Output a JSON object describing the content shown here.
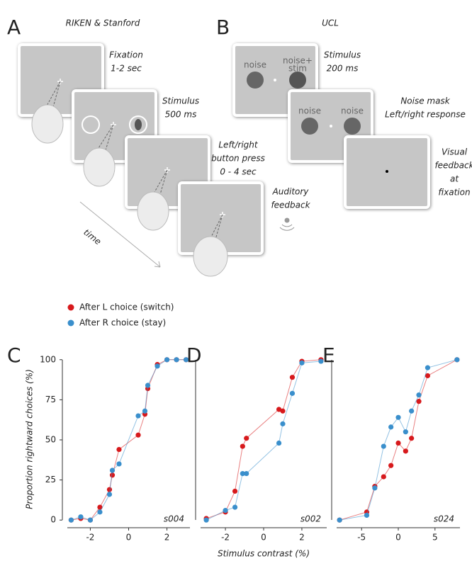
{
  "diagram": {
    "panel_a": {
      "letter": "A",
      "title": "RIKEN & Stanford",
      "labels": [
        [
          "Fixation",
          "1-2 sec"
        ],
        [
          "Stimulus",
          "500 ms"
        ],
        [
          "Left/right",
          "button press",
          "0 - 4 sec"
        ],
        [
          "Auditory",
          "feedback"
        ]
      ],
      "time": "time"
    },
    "panel_b": {
      "letter": "B",
      "title": "UCL",
      "labels": [
        [
          "Stimulus",
          "200 ms"
        ],
        [
          "Noise mask",
          "Left/right response"
        ],
        [
          "Visual",
          "feedback",
          "at",
          "fixation"
        ]
      ],
      "screen_texts": [
        [
          "noise"
        ],
        [
          "noise+",
          "stim"
        ],
        [
          "noise"
        ],
        [
          "noise"
        ]
      ]
    }
  },
  "chart_data": [
    {
      "type": "line",
      "panel": "C",
      "annotation": "s004",
      "y_label": "Proportion rightward choices (%)",
      "x": [
        -3,
        -2.5,
        -2,
        -1.5,
        -1,
        -0.85,
        -0.5,
        0.5,
        0.85,
        1,
        1.5,
        2,
        2.5,
        3
      ],
      "series": [
        {
          "name": "After L choice (switch)",
          "color": "#d7191c",
          "values": [
            0,
            1,
            0,
            8,
            19,
            28,
            44,
            53,
            66,
            82,
            97,
            100,
            100,
            100
          ]
        },
        {
          "name": "After R choice (stay)",
          "color": "#3a8fcc",
          "values": [
            0,
            2,
            0,
            5,
            16,
            31,
            35,
            65,
            68,
            84,
            96,
            100,
            100,
            100
          ]
        }
      ],
      "xlim": [
        -3.2,
        3.2
      ],
      "xticks": [
        -2,
        0,
        2
      ],
      "ylim": [
        -3,
        103
      ],
      "yticks": [
        0,
        25,
        50,
        75,
        100
      ]
    },
    {
      "type": "line",
      "panel": "D",
      "annotation": "s002",
      "x_label": "Stimulus contrast (%)",
      "x": [
        -3,
        -2,
        -1.5,
        -1.1,
        -0.9,
        0.8,
        1,
        1.5,
        2,
        3
      ],
      "series": [
        {
          "color": "#d7191c",
          "values": [
            1,
            5,
            18,
            46,
            51,
            69,
            68,
            89,
            99,
            100
          ]
        },
        {
          "color": "#3a8fcc",
          "values": [
            0,
            6,
            8,
            29,
            29,
            48,
            60,
            79,
            98,
            99
          ]
        }
      ],
      "xlim": [
        -3.3,
        3.3
      ],
      "xticks": [
        -2,
        0,
        2
      ],
      "ylim": [
        -3,
        103
      ]
    },
    {
      "type": "line",
      "panel": "E",
      "annotation": "s024",
      "x": [
        -8,
        -4.3,
        -3.2,
        -2,
        -1,
        0,
        1,
        1.8,
        2.8,
        4,
        8
      ],
      "series": [
        {
          "color": "#d7191c",
          "values": [
            0,
            5,
            21,
            27,
            34,
            48,
            43,
            51,
            74,
            90,
            100
          ]
        },
        {
          "color": "#3a8fcc",
          "values": [
            0,
            3,
            20,
            46,
            58,
            64,
            55,
            68,
            78,
            95,
            100
          ]
        }
      ],
      "xlim": [
        -8.4,
        8.4
      ],
      "xticks": [
        -5,
        0,
        5
      ],
      "ylim": [
        -3,
        103
      ]
    }
  ]
}
